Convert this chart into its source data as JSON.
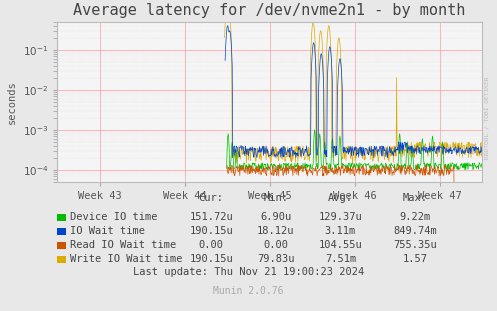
{
  "title": "Average latency for /dev/nvme2n1 - by month",
  "ylabel": "seconds",
  "background_color": "#e8e8e8",
  "plot_background_color": "#f5f5f5",
  "grid_color_major": "#ffaaaa",
  "grid_color_minor": "#ccccdd",
  "week_labels": [
    "Week 43",
    "Week 44",
    "Week 45",
    "Week 46",
    "Week 47"
  ],
  "legend_items": [
    {
      "label": "Device IO time",
      "color": "#00bb00"
    },
    {
      "label": "IO Wait time",
      "color": "#0044cc"
    },
    {
      "label": "Read IO Wait time",
      "color": "#cc5500"
    },
    {
      "label": "Write IO Wait time",
      "color": "#ddaa00"
    }
  ],
  "legend_stats": {
    "headers": [
      "Cur:",
      "Min:",
      "Avg:",
      "Max:"
    ],
    "rows": [
      [
        "151.72u",
        "6.90u",
        "129.37u",
        "9.22m"
      ],
      [
        "190.15u",
        "18.12u",
        "3.11m",
        "849.74m"
      ],
      [
        "0.00",
        "0.00",
        "104.55u",
        "755.35u"
      ],
      [
        "190.15u",
        "79.83u",
        "7.51m",
        "1.57"
      ]
    ]
  },
  "footer": "Last update: Thu Nov 21 19:00:23 2024",
  "munin_version": "Munin 2.0.76",
  "watermark": "RRDTOOL / TOBI OETIKER",
  "title_fontsize": 11,
  "axis_fontsize": 7.5,
  "legend_fontsize": 7.5
}
